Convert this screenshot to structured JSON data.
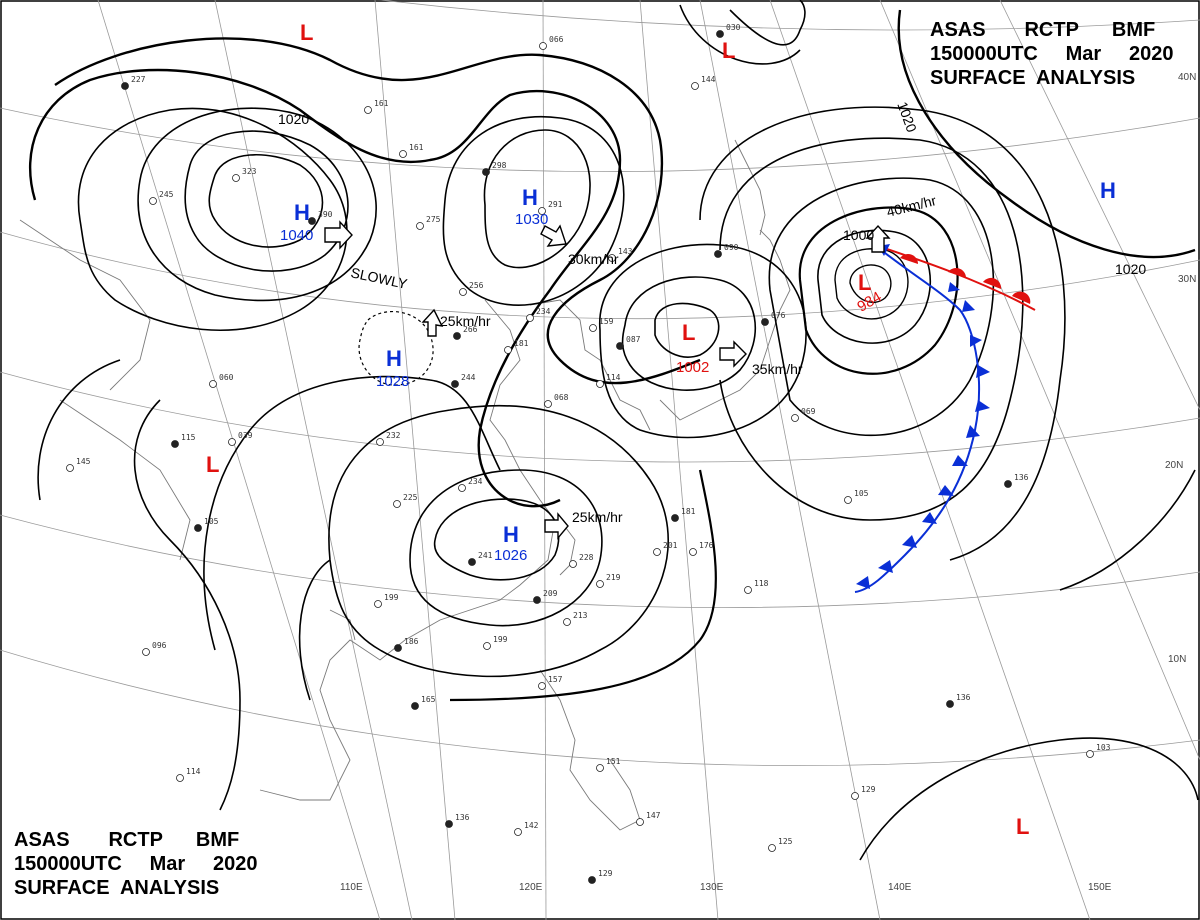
{
  "header_top_right": {
    "line1": "ASAS       RCTP      BMF",
    "line2": "150000UTC     Mar     2020",
    "line3": "SURFACE  ANALYSIS"
  },
  "header_bottom_left": {
    "line1": "ASAS       RCTP      BMF",
    "line2": "150000UTC     Mar     2020",
    "line3": "SURFACE  ANALYSIS"
  },
  "isobar_labels": [
    "1020",
    "1020",
    "1020",
    "1000"
  ],
  "pressure_systems": [
    {
      "type": "H",
      "pressure": "1040",
      "motion": "SLOWLY"
    },
    {
      "type": "H",
      "pressure": "1030",
      "motion": "30km/hr"
    },
    {
      "type": "H",
      "pressure": "1028",
      "motion": "25km/hr"
    },
    {
      "type": "H",
      "pressure": "1026",
      "motion": "25km/hr"
    },
    {
      "type": "H",
      "pressure": "",
      "motion": ""
    },
    {
      "type": "L",
      "pressure": "1002",
      "motion": "35km/hr"
    },
    {
      "type": "L",
      "pressure": "984",
      "motion": "40km/hr"
    },
    {
      "type": "L",
      "pressure": "",
      "motion": ""
    },
    {
      "type": "L",
      "pressure": "",
      "motion": ""
    },
    {
      "type": "L",
      "pressure": "",
      "motion": ""
    },
    {
      "type": "L",
      "pressure": "",
      "motion": ""
    }
  ],
  "latitude_labels": [
    "40N",
    "30N",
    "20N",
    "10N"
  ],
  "longitude_labels": [
    "110E",
    "120E",
    "130E",
    "140E",
    "150E"
  ],
  "fronts": [
    {
      "kind": "cold-front",
      "color": "#0a2fd6"
    },
    {
      "kind": "warm-front",
      "color": "#e0110f"
    }
  ],
  "station_plots": [
    "227",
    "161",
    "066",
    "030",
    "144",
    "161",
    "298",
    "245",
    "323",
    "390",
    "275",
    "291",
    "090",
    "143",
    "256",
    "266",
    "234",
    "159",
    "087",
    "114",
    "060",
    "115",
    "039",
    "232",
    "244",
    "181",
    "068",
    "076",
    "069",
    "145",
    "105",
    "225",
    "234",
    "241",
    "228",
    "201",
    "181",
    "176",
    "219",
    "209",
    "213",
    "199",
    "186",
    "199",
    "096",
    "165",
    "118",
    "105",
    "136",
    "157",
    "151",
    "136",
    "142",
    "147",
    "129",
    "125",
    "129",
    "136",
    "103",
    "114"
  ],
  "colors": {
    "high": "#0a2fd6",
    "low": "#e0110f",
    "isobar": "#000000",
    "grid": "#8a8a8a"
  }
}
